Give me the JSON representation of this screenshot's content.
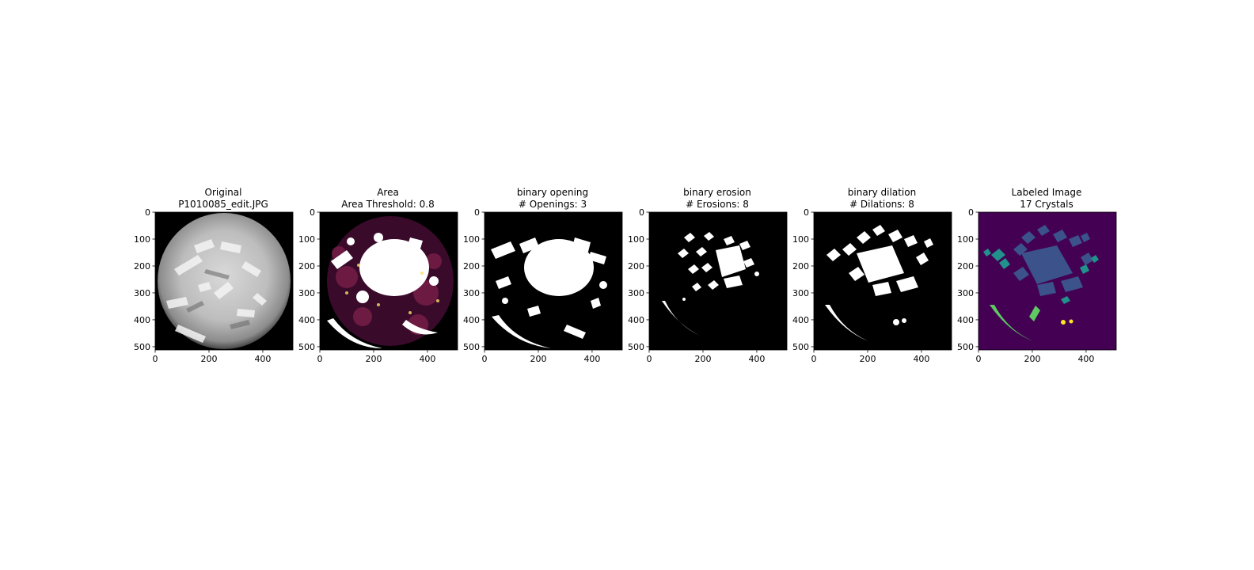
{
  "panels": [
    {
      "id": "original",
      "title_line1": "Original",
      "title_line2": "P1010085_edit.JPG"
    },
    {
      "id": "area",
      "title_line1": "Area",
      "title_line2": "Area Threshold: 0.8"
    },
    {
      "id": "opening",
      "title_line1": "binary opening",
      "title_line2": "# Openings: 3"
    },
    {
      "id": "erosion",
      "title_line1": "binary erosion",
      "title_line2": "# Erosions: 8"
    },
    {
      "id": "dilation",
      "title_line1": "binary dilation",
      "title_line2": "# Dilations: 8"
    },
    {
      "id": "labeled",
      "title_line1": "Labeled Image",
      "title_line2": "17 Crystals"
    }
  ],
  "axes": {
    "x_ticks": [
      "0",
      "200",
      "400"
    ],
    "y_ticks": [
      "0",
      "100",
      "200",
      "300",
      "400",
      "500"
    ]
  },
  "colors": {
    "background": "#ffffff",
    "image_black": "#000000",
    "label_background": "#440154",
    "label_blue": "#3b528b",
    "label_teal": "#21918c",
    "label_green": "#5ec962",
    "label_yellow": "#fde725"
  }
}
